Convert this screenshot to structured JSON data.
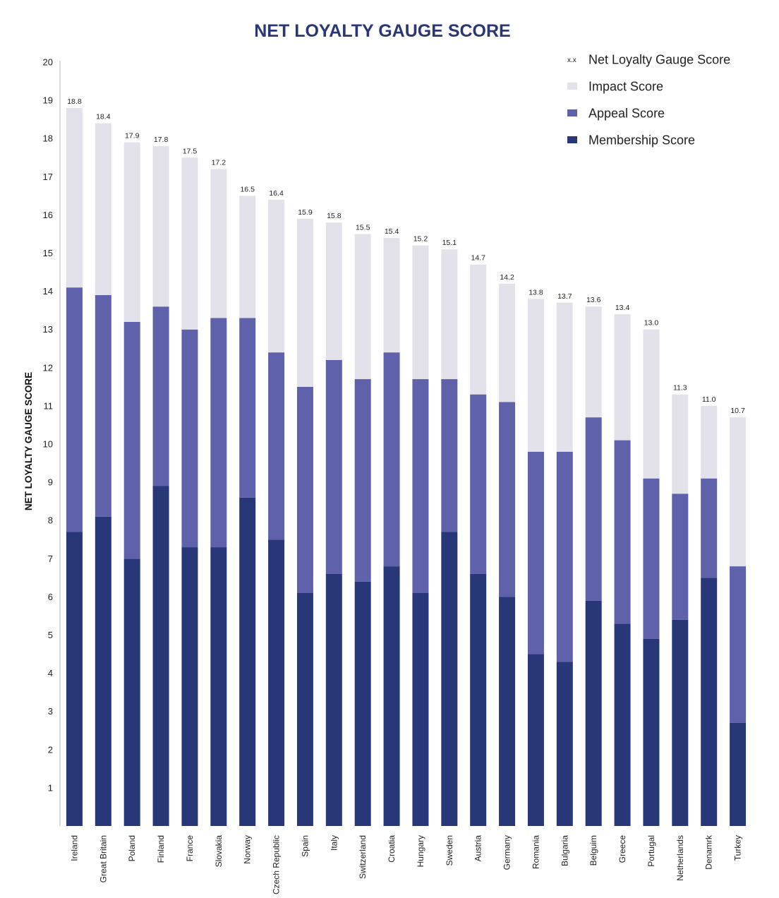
{
  "chart_data": {
    "type": "bar",
    "stacked": true,
    "title": "NET LOYALTY GAUGE SCORE",
    "xlabel": "",
    "ylabel": "NET LOYALTY GAUGE SCORE",
    "ylim": [
      0,
      20
    ],
    "yticks": [
      "1",
      "2",
      "3",
      "4",
      "5",
      "6",
      "7",
      "8",
      "9",
      "10",
      "11",
      "12",
      "13",
      "14",
      "15",
      "16",
      "17",
      "18",
      "19",
      "20"
    ],
    "grid": false,
    "legend_position": "top-right",
    "categories": [
      "Ireland",
      "Great Britain",
      "Poland",
      "Finland",
      "France",
      "Slovakia",
      "Norway",
      "Czech Republic",
      "Spain",
      "Italy",
      "Switzerland",
      "Croatia",
      "Hungary",
      "Sweden",
      "Austria",
      "Germany",
      "Romania",
      "Bulgaria",
      "Belguim",
      "Greece",
      "Portugal",
      "Netherlands",
      "Denamrk",
      "Turkey"
    ],
    "series": [
      {
        "name": "Membership Score",
        "color": "#283777",
        "values": [
          7.7,
          8.1,
          7.0,
          8.9,
          7.3,
          7.3,
          8.6,
          7.5,
          6.1,
          6.6,
          6.4,
          6.8,
          6.1,
          7.7,
          6.6,
          6.0,
          4.5,
          4.3,
          5.9,
          5.3,
          4.9,
          5.4,
          6.5,
          2.7
        ]
      },
      {
        "name": "Appeal Score",
        "color": "#5f62ab",
        "values": [
          6.4,
          5.8,
          6.2,
          4.7,
          5.7,
          6.0,
          4.7,
          4.9,
          5.4,
          5.6,
          5.3,
          5.6,
          5.6,
          4.0,
          4.7,
          5.1,
          5.3,
          5.5,
          4.8,
          4.8,
          4.2,
          3.3,
          2.6,
          4.1
        ]
      },
      {
        "name": "Impact Score",
        "color": "#e3e2ea",
        "values": [
          4.7,
          4.5,
          4.7,
          4.2,
          4.5,
          3.9,
          3.2,
          4.0,
          4.4,
          3.6,
          3.8,
          3.0,
          3.5,
          3.4,
          3.4,
          3.1,
          4.0,
          3.9,
          2.9,
          3.3,
          3.9,
          2.6,
          1.9,
          3.9
        ]
      }
    ],
    "totals": [
      "18.8",
      "18.4",
      "17.9",
      "17.8",
      "17.5",
      "17.2",
      "16.5",
      "16.4",
      "15.9",
      "15.8",
      "15.5",
      "15.4",
      "15.2",
      "15.1",
      "14.7",
      "14.2",
      "13.8",
      "13.7",
      "13.6",
      "13.4",
      "13.0",
      "11.3",
      "11.0",
      "10.7"
    ],
    "legend": [
      {
        "marker": "x.x",
        "label": "Net Loyalty Gauge Score"
      },
      {
        "marker": "#e3e2ea",
        "label": "Impact Score"
      },
      {
        "marker": "#5f62ab",
        "label": "Appeal Score"
      },
      {
        "marker": "#283777",
        "label": "Membership Score"
      }
    ]
  }
}
